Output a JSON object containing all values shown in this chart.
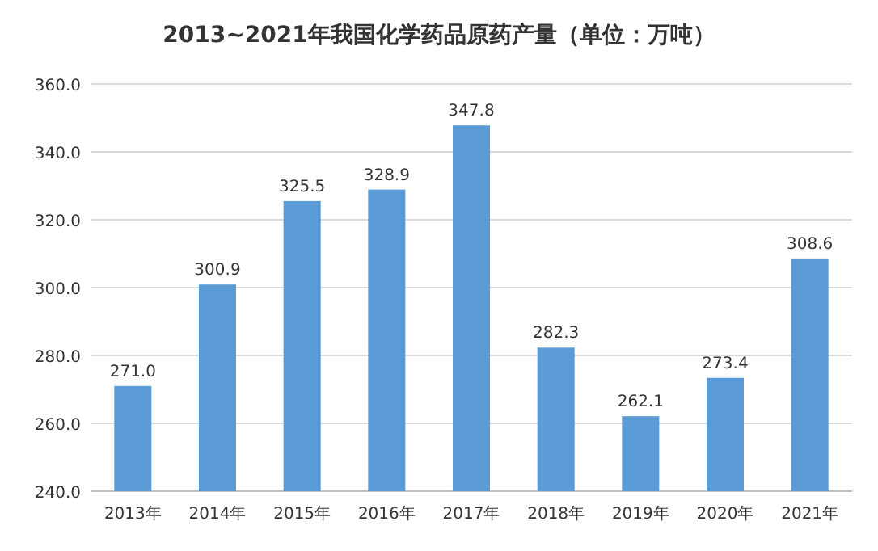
{
  "chart_data": {
    "type": "bar",
    "title": "2013~2021年我国化学药品原药产量（单位：万吨）",
    "categories": [
      "2013年",
      "2014年",
      "2015年",
      "2016年",
      "2017年",
      "2018年",
      "2019年",
      "2020年",
      "2021年"
    ],
    "values": [
      271.0,
      300.9,
      325.5,
      328.9,
      347.8,
      282.3,
      262.1,
      273.4,
      308.6
    ],
    "value_labels": [
      "271.0",
      "300.9",
      "325.5",
      "328.9",
      "347.8",
      "282.3",
      "262.1",
      "273.4",
      "308.6"
    ],
    "color": "#5b9bd5",
    "ylim": [
      240,
      360
    ],
    "yticks": [
      {
        "value": 240,
        "label": "240.0"
      },
      {
        "value": 260,
        "label": "260.0"
      },
      {
        "value": 280,
        "label": "280.0"
      },
      {
        "value": 300,
        "label": "300.0"
      },
      {
        "value": 320,
        "label": "320.0"
      },
      {
        "value": 340,
        "label": "340.0"
      },
      {
        "value": 360,
        "label": "360.0"
      }
    ],
    "grid": "y"
  }
}
